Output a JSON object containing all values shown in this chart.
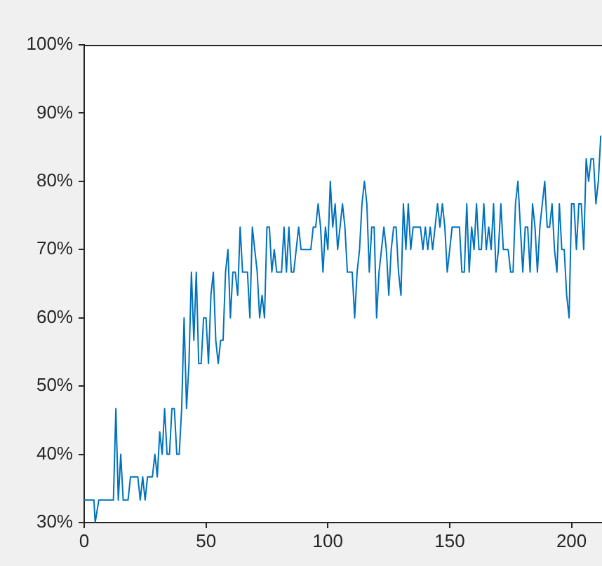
{
  "chart_data": {
    "type": "line",
    "xlim": [
      0,
      212.5
    ],
    "xticks": [
      0,
      50,
      100,
      150,
      200
    ],
    "ylim": [
      30,
      100
    ],
    "yticks": [
      {
        "value": 30,
        "label": "30%"
      },
      {
        "value": 40,
        "label": "40%"
      },
      {
        "value": 50,
        "label": "50%"
      },
      {
        "value": 60,
        "label": "60%"
      },
      {
        "value": 70,
        "label": "70%"
      },
      {
        "value": 80,
        "label": "80%"
      },
      {
        "value": 90,
        "label": "90%"
      },
      {
        "value": 100,
        "label": "100%"
      }
    ],
    "grid": false,
    "legend": false,
    "marker": "none",
    "line_style": "solid",
    "series": [
      {
        "color": "#0072bd",
        "x": [
          0,
          4,
          4.5,
          6,
          12,
          13,
          14,
          15,
          16,
          18,
          19,
          22,
          23,
          24,
          25,
          26,
          28,
          29,
          30,
          31,
          32,
          33,
          34,
          35,
          36,
          37,
          38,
          39,
          40,
          41,
          42,
          43,
          44,
          45,
          46,
          47,
          48,
          49,
          50,
          51,
          52,
          53,
          54,
          55,
          56,
          57,
          58,
          59,
          60,
          61,
          62,
          63,
          64,
          65,
          67,
          68,
          69,
          70,
          71,
          72,
          73,
          74,
          75,
          76,
          77,
          78,
          79,
          81,
          82,
          83,
          84,
          85,
          86,
          87,
          88,
          89,
          93,
          94,
          95,
          96,
          97,
          98,
          99,
          100,
          101,
          102,
          103,
          104,
          105,
          106,
          107,
          108,
          110,
          111,
          112,
          113,
          114,
          115,
          116,
          117,
          118,
          119,
          120,
          121,
          122,
          123,
          124,
          125,
          126,
          127,
          128,
          129,
          130,
          131,
          132,
          133,
          134,
          135,
          138,
          139,
          140,
          141,
          142,
          143,
          144,
          145,
          146,
          147,
          148,
          149,
          150,
          151,
          154,
          155,
          156,
          157,
          158,
          159,
          160,
          161,
          162,
          163,
          164,
          165,
          166,
          167,
          168,
          169,
          170,
          171,
          172,
          174,
          175,
          176,
          177,
          178,
          179,
          180,
          181,
          182,
          183,
          184,
          185,
          186,
          187,
          188,
          189,
          190,
          191,
          192,
          193,
          194,
          195,
          196,
          197,
          198,
          199,
          200,
          201,
          202,
          203,
          204,
          205,
          206,
          207,
          208,
          209,
          210,
          211,
          212
        ],
        "values": [
          33.3,
          33.3,
          30,
          33.3,
          33.3,
          46.7,
          33.3,
          40,
          33.3,
          33.3,
          36.7,
          36.7,
          33.3,
          36.7,
          33.3,
          36.7,
          36.7,
          40,
          36.7,
          43.3,
          40,
          46.7,
          40,
          40,
          46.7,
          46.7,
          40,
          40,
          46.7,
          60,
          46.7,
          53.3,
          66.7,
          56.7,
          66.7,
          53.3,
          53.3,
          60,
          60,
          53.3,
          63.3,
          66.7,
          56.7,
          53.3,
          56.7,
          56.7,
          66.7,
          70,
          60,
          66.7,
          66.7,
          63.3,
          73.3,
          66.7,
          66.7,
          60,
          73.3,
          70,
          66.7,
          60,
          63.3,
          60,
          73.3,
          73.3,
          66.7,
          70,
          66.7,
          66.7,
          73.3,
          66.7,
          73.3,
          66.7,
          66.7,
          70,
          73.3,
          70,
          70,
          73.3,
          73.3,
          76.7,
          73.3,
          66.7,
          73.3,
          70,
          80,
          73.3,
          76.7,
          70,
          73.3,
          76.7,
          73.3,
          66.7,
          66.7,
          60,
          66.7,
          70,
          76.7,
          80,
          76.7,
          66.7,
          73.3,
          73.3,
          60,
          66.7,
          70,
          73.3,
          70,
          63.3,
          70,
          73.3,
          73.3,
          66.7,
          63.3,
          76.7,
          70,
          76.7,
          70,
          73.3,
          73.3,
          70,
          73.3,
          70,
          73.3,
          70,
          73.3,
          76.7,
          73.3,
          76.7,
          73.3,
          66.7,
          70,
          73.3,
          73.3,
          66.7,
          66.7,
          76.7,
          66.7,
          73.3,
          70,
          76.7,
          70,
          70,
          76.7,
          70,
          73.3,
          70,
          76.7,
          66.7,
          70,
          76.7,
          70,
          70,
          66.7,
          66.7,
          76.7,
          80,
          73.3,
          66.7,
          73.3,
          73.3,
          66.7,
          76.7,
          73.3,
          66.7,
          73.3,
          76.7,
          80,
          73.3,
          73.3,
          76.7,
          70,
          66.7,
          76.7,
          70,
          70,
          63.3,
          60,
          76.7,
          76.7,
          70,
          76.7,
          76.7,
          70,
          83.3,
          80,
          83.3,
          83.3,
          76.7,
          80,
          86.7
        ]
      }
    ]
  }
}
